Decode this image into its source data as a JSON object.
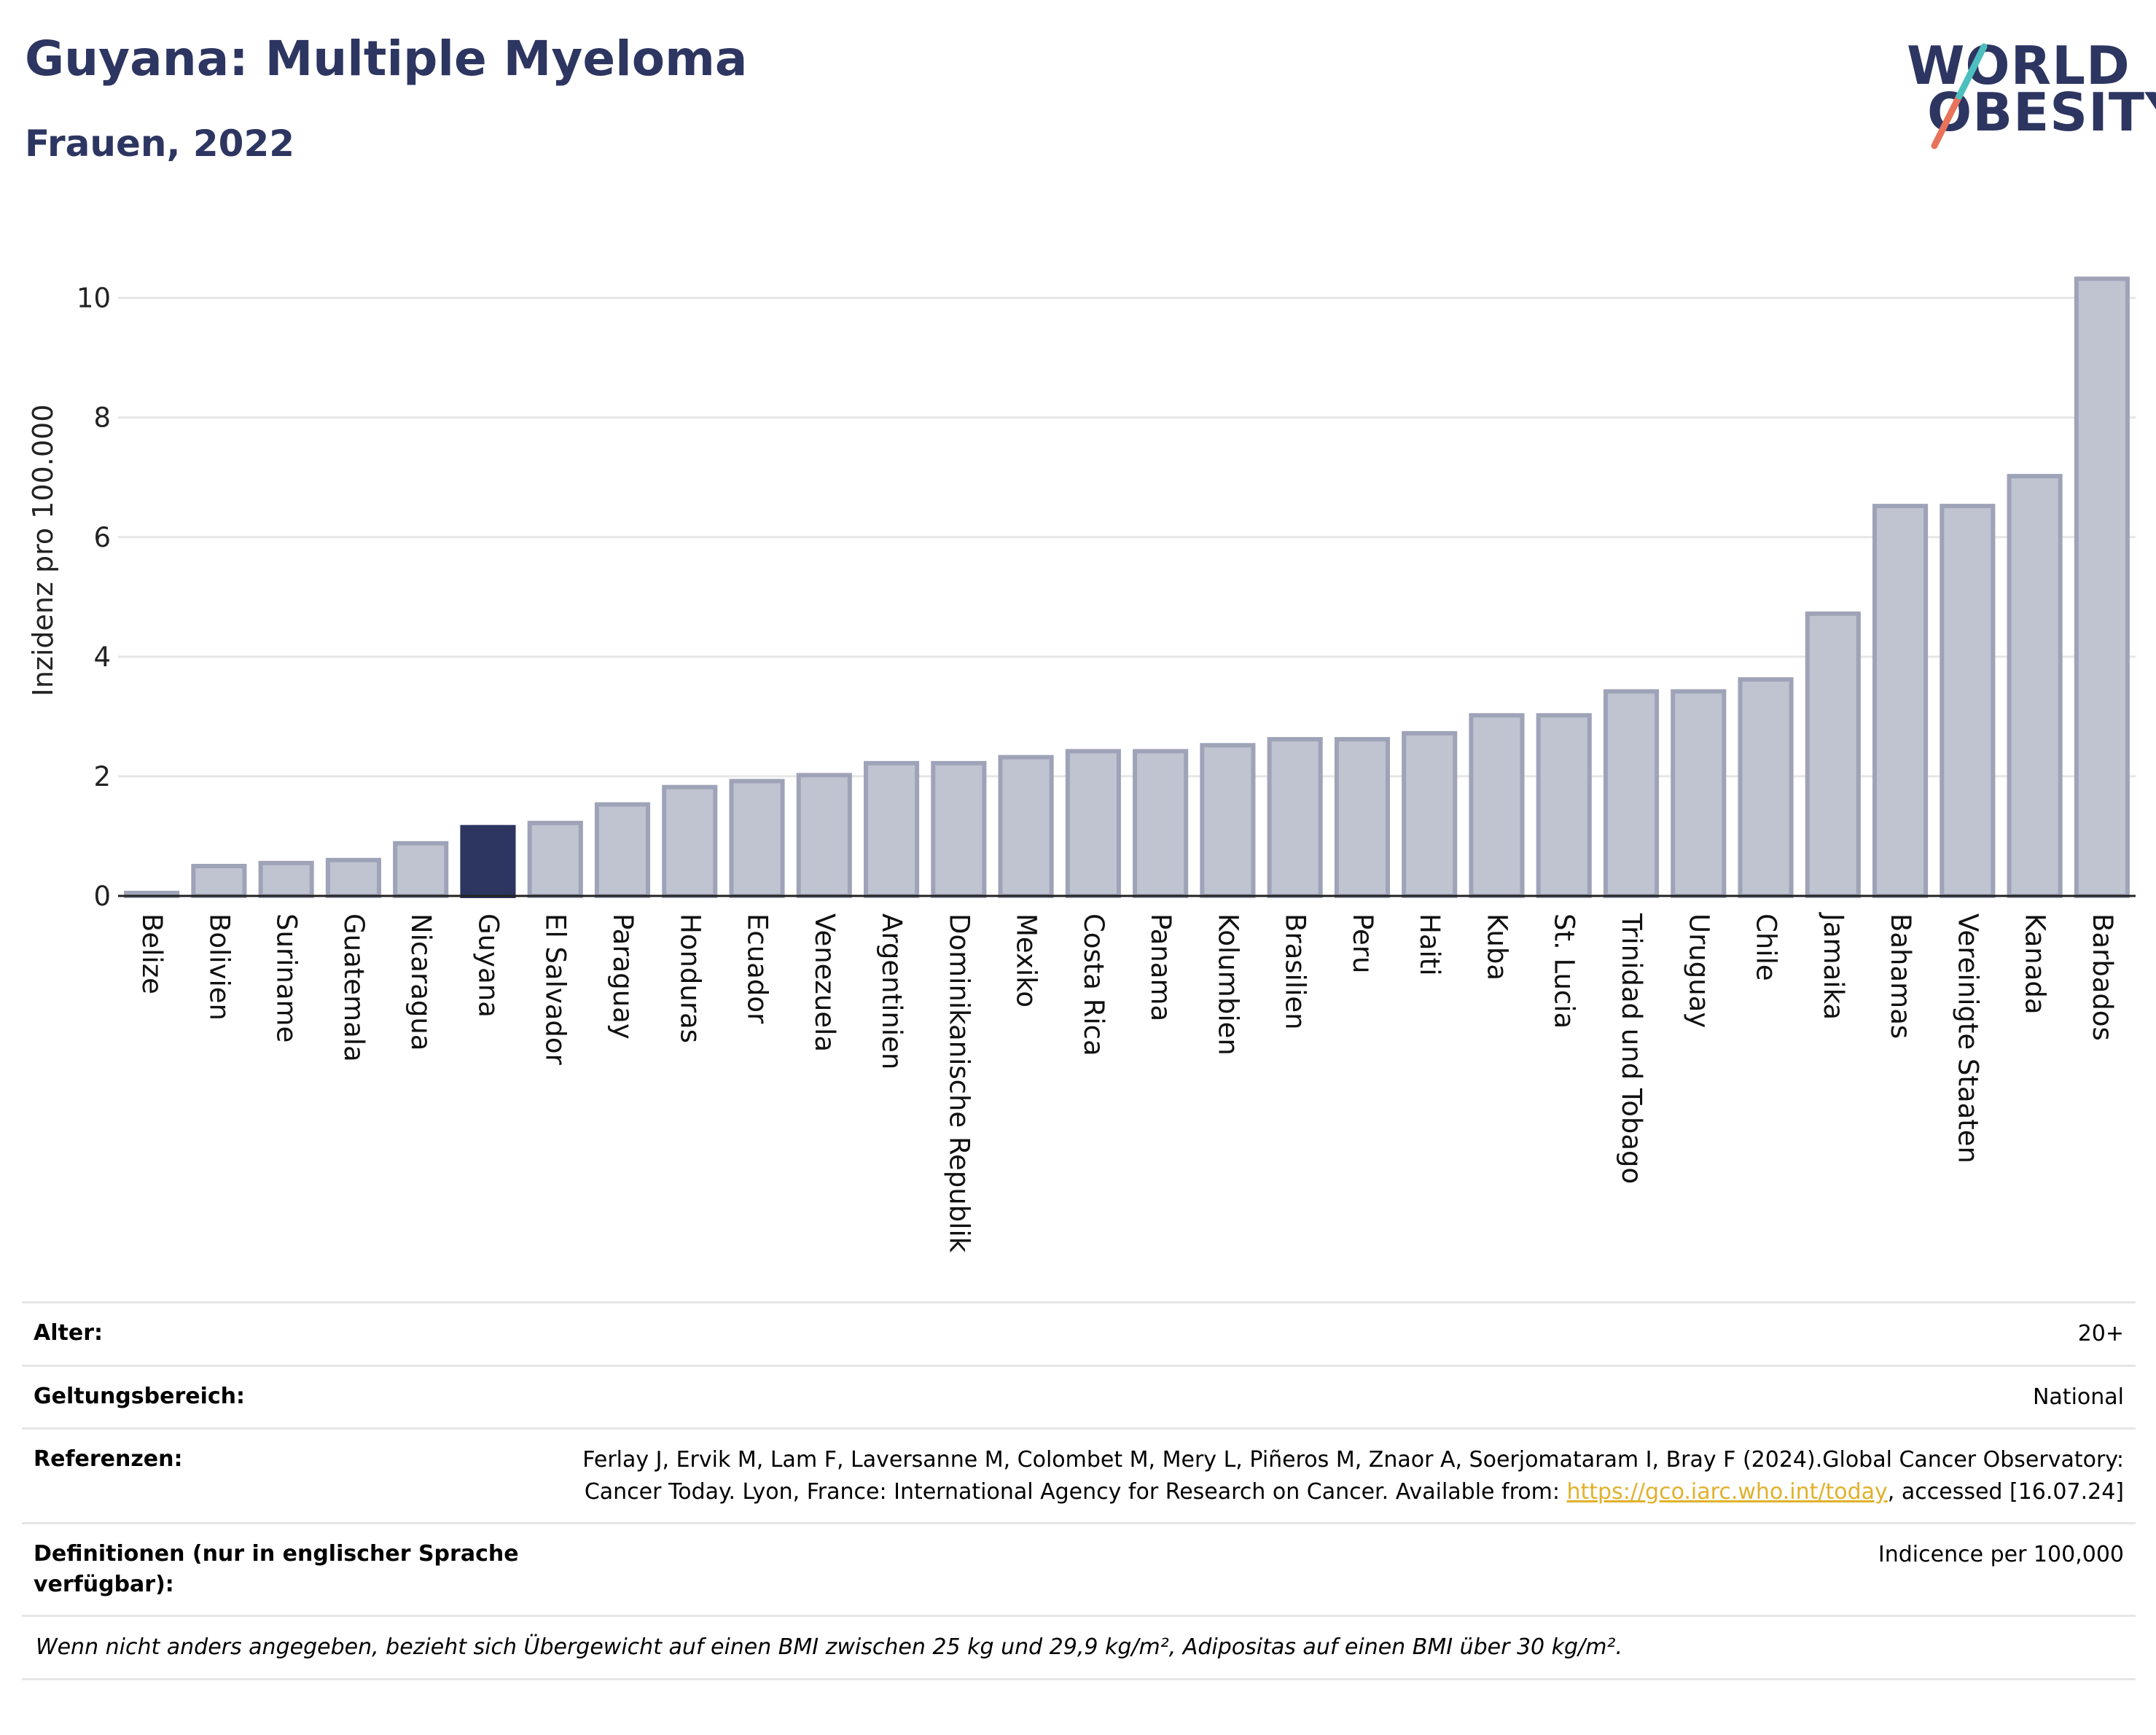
{
  "header": {
    "title": "Guyana: Multiple Myeloma",
    "subtitle": "Frauen, 2022"
  },
  "logo": {
    "line1": "WORLD",
    "line2": "OBESITY"
  },
  "colors": {
    "highlight_bar": "#2d3561",
    "default_bar_fill": "#c0c3d0",
    "default_bar_stroke": "#9fa3b8",
    "grid": "#e6e6e6",
    "logo_navy": "#2d3561",
    "logo_teal": "#4dbfbf",
    "logo_coral": "#e8735a"
  },
  "chart_data": {
    "type": "bar",
    "ylabel": "Inzidenz pro 100.000",
    "xlabel": "",
    "ylim": [
      0,
      10.8
    ],
    "yticks": [
      0,
      2,
      4,
      6,
      8,
      10
    ],
    "grid": true,
    "highlight": "Guyana",
    "categories": [
      "Belize",
      "Bolivien",
      "Suriname",
      "Guatemala",
      "Nicaragua",
      "Guyana",
      "El Salvador",
      "Paraguay",
      "Honduras",
      "Ecuador",
      "Venezuela",
      "Argentinien",
      "Dominikanische Republik",
      "Mexiko",
      "Costa Rica",
      "Panama",
      "Kolumbien",
      "Brasilien",
      "Peru",
      "Haiti",
      "Kuba",
      "St. Lucia",
      "Trinidad und Tobago",
      "Uruguay",
      "Chile",
      "Jamaika",
      "Bahamas",
      "Vereinigte Staaten",
      "Kanada",
      "Barbados"
    ],
    "values": [
      0.05,
      0.5,
      0.55,
      0.6,
      0.88,
      1.15,
      1.22,
      1.53,
      1.82,
      1.92,
      2.02,
      2.22,
      2.22,
      2.32,
      2.42,
      2.42,
      2.52,
      2.62,
      2.62,
      2.72,
      3.02,
      3.02,
      3.42,
      3.42,
      3.62,
      4.72,
      6.52,
      6.52,
      7.02,
      10.32
    ]
  },
  "meta": {
    "age_label": "Alter:",
    "age_value": "20+",
    "scope_label": "Geltungsbereich:",
    "scope_value": "National",
    "ref_label": "Referenzen:",
    "ref_text": "Ferlay J, Ervik M, Lam F, Laversanne M, Colombet M, Mery L, Piñeros M, Znaor A, Soerjomataram I, Bray F (2024).Global Cancer Observatory: Cancer Today. Lyon, France: International Agency for Research on Cancer. Available from: ",
    "ref_link": "https://gco.iarc.who.int/today",
    "ref_suffix": ", accessed [16.07.24]",
    "def_label": "Definitionen (nur in englischer Sprache verfügbar):",
    "def_value": "Indicence per 100,000",
    "note": "Wenn nicht anders angegeben, bezieht sich Übergewicht auf einen BMI zwischen 25 kg und 29,9 kg/m², Adipositas auf einen BMI über 30 kg/m²."
  }
}
